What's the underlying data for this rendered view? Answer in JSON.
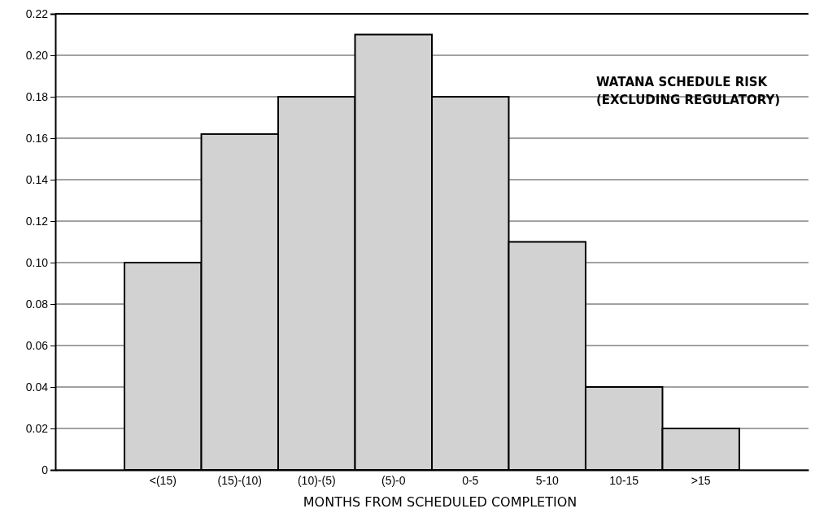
{
  "chart_data": {
    "type": "bar",
    "title": "WATANA SCHEDULE RISK",
    "subtitle": "(EXCLUDING REGULATORY)",
    "xlabel": "MONTHS FROM SCHEDULED COMPLETION",
    "categories": [
      "<(15)",
      "(15)-(10)",
      "(10)-(5)",
      "(5)-0",
      "0-5",
      "5-10",
      "10-15",
      ">15"
    ],
    "values": [
      0.1,
      0.162,
      0.18,
      0.21,
      0.18,
      0.11,
      0.04,
      0.02
    ],
    "color": "#d2d2d2",
    "ylim": [
      0,
      0.22
    ],
    "yticks": [
      {
        "value": 0,
        "label": "0"
      },
      {
        "value": 0.02,
        "label": "0.02"
      },
      {
        "value": 0.04,
        "label": "0.04"
      },
      {
        "value": 0.06,
        "label": "0.06"
      },
      {
        "value": 0.08,
        "label": "0.08"
      },
      {
        "value": 0.1,
        "label": "0.10"
      },
      {
        "value": 0.12,
        "label": "0.12"
      },
      {
        "value": 0.14,
        "label": "0.14"
      },
      {
        "value": 0.16,
        "label": "0.16"
      },
      {
        "value": 0.18,
        "label": "0.18"
      },
      {
        "value": 0.2,
        "label": "0.20"
      },
      {
        "value": 0.22,
        "label": "0.22"
      }
    ],
    "grid": "y"
  }
}
